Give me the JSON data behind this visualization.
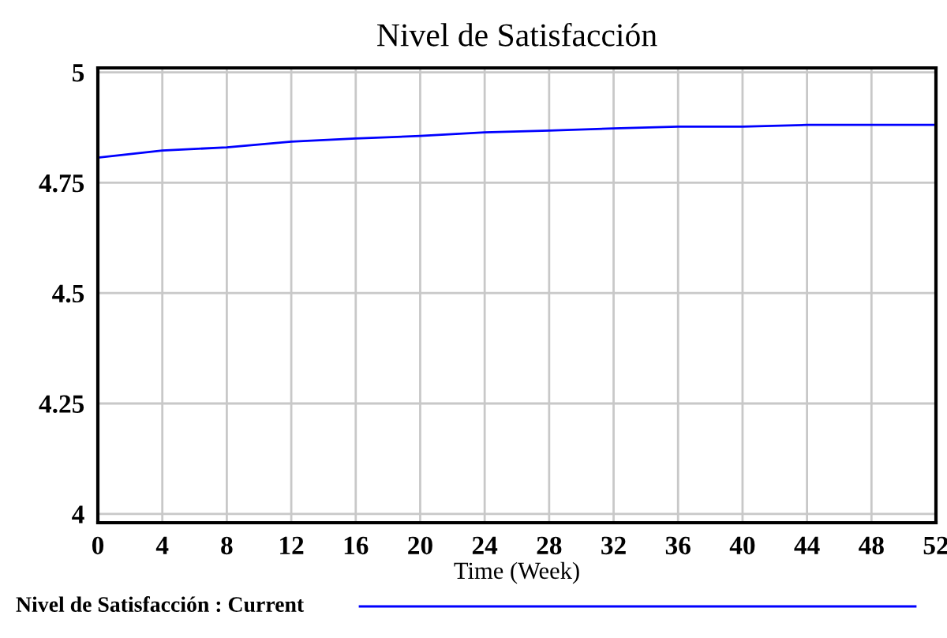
{
  "chart_data": {
    "type": "line",
    "title": "Nivel de Satisfacción",
    "xlabel": "Time (Week)",
    "x": [
      0,
      4,
      8,
      12,
      16,
      20,
      24,
      28,
      32,
      36,
      40,
      44,
      48,
      52
    ],
    "series": [
      {
        "name": "Nivel de Satisfacción : Current",
        "color": "#0000ff",
        "values": [
          4.807,
          4.823,
          4.83,
          4.843,
          4.85,
          4.856,
          4.864,
          4.868,
          4.873,
          4.877,
          4.877,
          4.881,
          4.881,
          4.881
        ]
      }
    ],
    "xlim": [
      0,
      52
    ],
    "xticks": [
      0,
      4,
      8,
      12,
      16,
      20,
      24,
      28,
      32,
      36,
      40,
      44,
      48,
      52
    ],
    "ylim": [
      3.98,
      5.01
    ],
    "yticks": [
      4,
      4.25,
      4.5,
      4.75,
      5
    ],
    "grid": true,
    "legend": "bottom",
    "marker": "none",
    "line_style": "solid"
  }
}
